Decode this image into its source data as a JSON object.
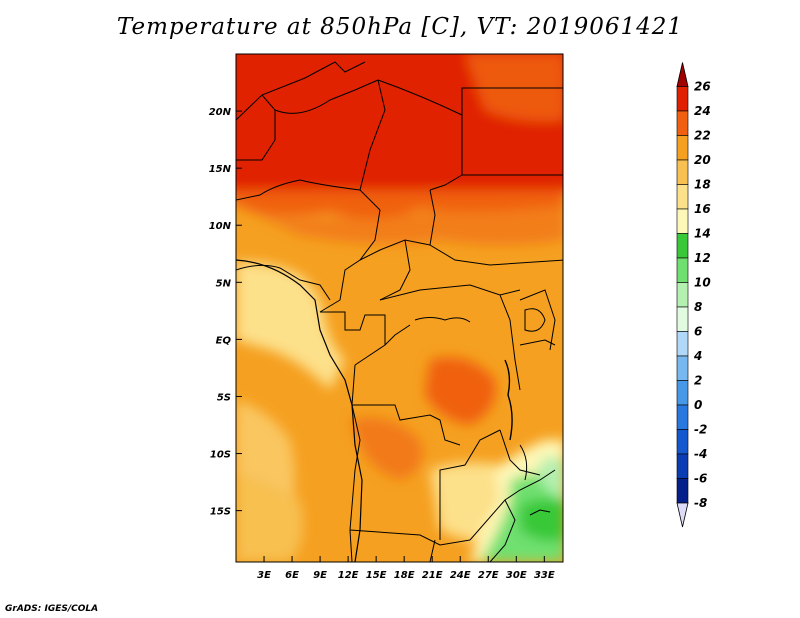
{
  "title": "Temperature at 850hPa [C], VT: 2019061421",
  "credit": "GrADS: IGES/COLA",
  "map": {
    "lon_range": [
      0,
      35
    ],
    "lat_range": [
      -19.5,
      25
    ],
    "lat_ticks": [
      {
        "value": 20,
        "label": "20N"
      },
      {
        "value": 15,
        "label": "15N"
      },
      {
        "value": 10,
        "label": "10N"
      },
      {
        "value": 5,
        "label": "5N"
      },
      {
        "value": 0,
        "label": "EQ"
      },
      {
        "value": -5,
        "label": "5S"
      },
      {
        "value": -10,
        "label": "10S"
      },
      {
        "value": -15,
        "label": "15S"
      }
    ],
    "lon_ticks": [
      {
        "value": 3,
        "label": "3E"
      },
      {
        "value": 6,
        "label": "6E"
      },
      {
        "value": 9,
        "label": "9E"
      },
      {
        "value": 12,
        "label": "12E"
      },
      {
        "value": 15,
        "label": "15E"
      },
      {
        "value": 18,
        "label": "18E"
      },
      {
        "value": 21,
        "label": "21E"
      },
      {
        "value": 24,
        "label": "24E"
      },
      {
        "value": 27,
        "label": "27E"
      },
      {
        "value": 30,
        "label": "30E"
      },
      {
        "value": 33,
        "label": "33E"
      }
    ]
  },
  "colorbar": {
    "levels": [
      {
        "label": "26",
        "color": "#a00000"
      },
      {
        "label": "24",
        "color": "#e02000"
      },
      {
        "label": "22",
        "color": "#f06010"
      },
      {
        "label": "20",
        "color": "#f5a020"
      },
      {
        "label": "18",
        "color": "#f7c050"
      },
      {
        "label": "16",
        "color": "#fde08a"
      },
      {
        "label": "14",
        "color": "#fef8b8"
      },
      {
        "label": "12",
        "color": "#38c838"
      },
      {
        "label": "10",
        "color": "#6fe070"
      },
      {
        "label": "8",
        "color": "#b4f0b0"
      },
      {
        "label": "6",
        "color": "#e0fbe0"
      },
      {
        "label": "4",
        "color": "#b0d8f8"
      },
      {
        "label": "2",
        "color": "#78b8f0"
      },
      {
        "label": "0",
        "color": "#4898e8"
      },
      {
        "label": "-2",
        "color": "#2878e0"
      },
      {
        "label": "-4",
        "color": "#1458d0"
      },
      {
        "label": "-6",
        "color": "#0a3cb4"
      },
      {
        "label": "-8",
        "color": "#05208a"
      }
    ],
    "top_color": "#a00000",
    "bottom_color": "#dcdcf8"
  }
}
